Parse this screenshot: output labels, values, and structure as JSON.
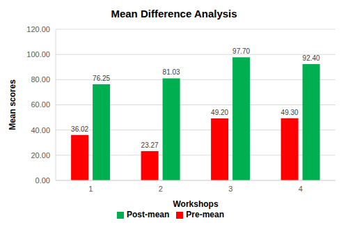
{
  "chart_data": {
    "type": "bar",
    "title": "Mean Difference Analysis",
    "x_label": "Workshops",
    "y_label": "Mean scores",
    "categories": [
      "1",
      "2",
      "3",
      "4"
    ],
    "series": [
      {
        "name": "Pre-mean",
        "color": "#ff0000",
        "values": [
          36.02,
          23.27,
          49.2,
          49.3
        ],
        "value_labels": [
          "36.02",
          "23.27",
          "49.20",
          "49.30"
        ]
      },
      {
        "name": "Post-mean",
        "color": "#00b050",
        "values": [
          76.25,
          81.03,
          97.7,
          92.4
        ],
        "value_labels": [
          "76.25",
          "81.03",
          "97.70",
          "92.40"
        ]
      }
    ],
    "ylim": [
      0,
      120
    ],
    "yticks": [
      {
        "value": 0,
        "label": "0.00"
      },
      {
        "value": 20,
        "label": "20.00"
      },
      {
        "value": 40,
        "label": "40.00"
      },
      {
        "value": 60,
        "label": "60.00"
      },
      {
        "value": 80,
        "label": "80.00"
      },
      {
        "value": 100,
        "label": "100.00"
      },
      {
        "value": 120,
        "label": "120.00"
      }
    ],
    "grid": true,
    "data_labels": true,
    "legend": "bottom"
  }
}
